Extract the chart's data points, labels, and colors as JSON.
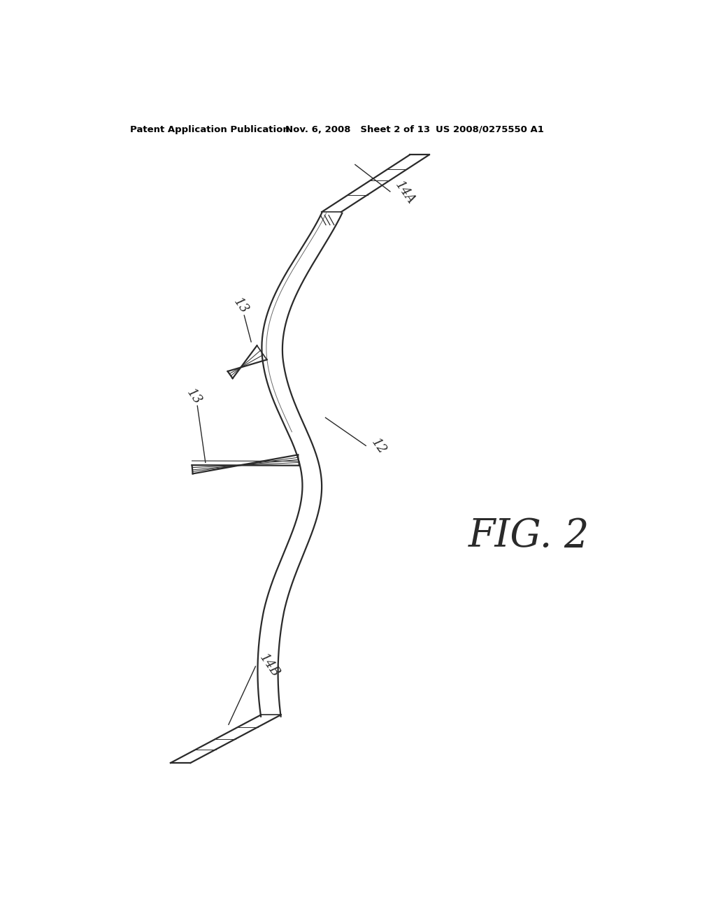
{
  "bg_color": "#ffffff",
  "line_color": "#2a2a2a",
  "header_left": "Patent Application Publication",
  "header_mid": "Nov. 6, 2008   Sheet 2 of 13",
  "header_right": "US 2008/0275550 A1",
  "fig_label": "FIG. 2",
  "label_14A": "14A",
  "label_14B": "14B",
  "label_12": "12",
  "label_13a": "13",
  "label_13b": "13"
}
